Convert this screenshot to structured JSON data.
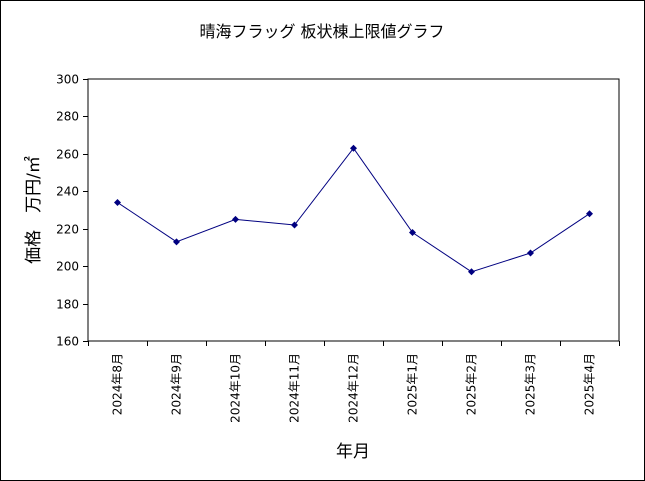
{
  "chart_data": {
    "type": "line",
    "title": "晴海フラッグ 板状棟上限値グラフ",
    "xlabel": "年月",
    "ylabel": "価格　万円/㎡",
    "categories": [
      "2024年8月",
      "2024年9月",
      "2024年10月",
      "2024年11月",
      "2024年12月",
      "2025年1月",
      "2025年2月",
      "2025年3月",
      "2025年4月"
    ],
    "series": [
      {
        "values": [
          234,
          213,
          225,
          222,
          263,
          218,
          197,
          207,
          228
        ]
      }
    ],
    "ylim": [
      160,
      300
    ],
    "yticks": [
      160,
      180,
      200,
      220,
      240,
      260,
      280,
      300
    ],
    "grid": true,
    "legend": "none",
    "colors": {
      "line": "#000080",
      "marker": "#000080",
      "grid": "#000000",
      "axis": "#000000",
      "background": "#ffffff"
    }
  }
}
